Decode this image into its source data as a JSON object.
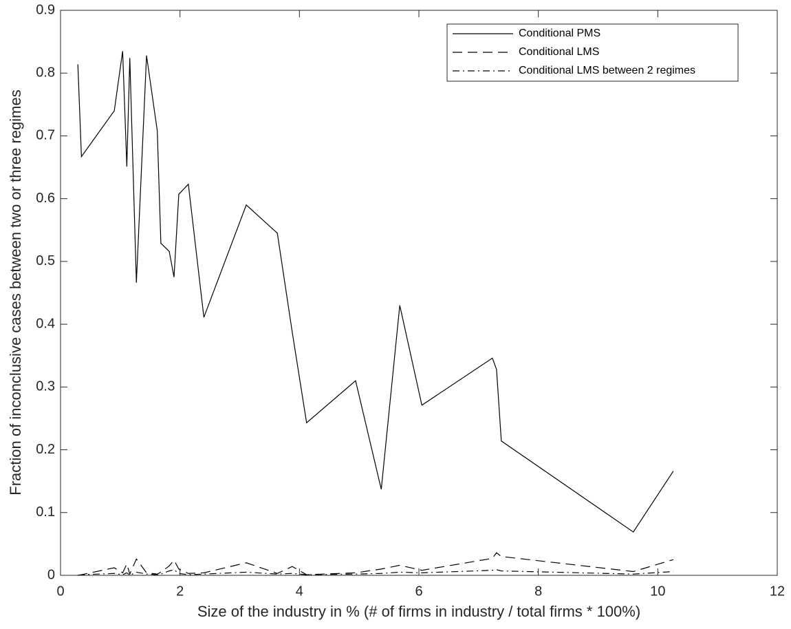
{
  "chart_data": {
    "type": "line",
    "xlabel": "Size of the industry in % (# of firms in industry / total firms * 100%)",
    "ylabel": "Fraction of inconclusive cases between two or three regimes",
    "x": [
      0.29,
      0.35,
      0.9,
      1.04,
      1.11,
      1.16,
      1.27,
      1.44,
      1.62,
      1.68,
      1.82,
      1.9,
      1.98,
      2.14,
      2.4,
      3.11,
      3.63,
      3.88,
      4.12,
      4.94,
      5.37,
      5.68,
      6.05,
      7.23,
      7.3,
      7.38,
      9.59,
      10.26
    ],
    "series": [
      {
        "name": "Conditional PMS",
        "color": "#000000",
        "dash": "solid",
        "values": [
          0.814,
          0.667,
          0.74,
          0.835,
          0.651,
          0.824,
          0.466,
          0.828,
          0.708,
          0.529,
          0.516,
          0.475,
          0.607,
          0.623,
          0.411,
          0.59,
          0.545,
          0.387,
          0.243,
          0.31,
          0.137,
          0.43,
          0.271,
          0.346,
          0.328,
          0.214,
          0.069,
          0.166
        ]
      },
      {
        "name": "Conditional LMS",
        "color": "#000000",
        "dash": "dashed",
        "values": [
          0.0,
          0.001,
          0.012,
          0.004,
          0.018,
          0.002,
          0.026,
          0.004,
          0.002,
          0.005,
          0.015,
          0.024,
          0.01,
          0.003,
          0.004,
          0.02,
          0.003,
          0.014,
          0.001,
          0.004,
          0.01,
          0.016,
          0.008,
          0.027,
          0.036,
          0.03,
          0.006,
          0.025
        ]
      },
      {
        "name": "Conditional LMS between 2 regimes",
        "color": "#000000",
        "dash": "dashdot",
        "values": [
          0.0,
          0.001,
          0.003,
          0.001,
          0.004,
          0.0,
          0.005,
          0.002,
          0.001,
          0.002,
          0.007,
          0.009,
          0.003,
          0.001,
          0.002,
          0.005,
          0.002,
          0.003,
          0.001,
          0.002,
          0.003,
          0.005,
          0.004,
          0.008,
          0.009,
          0.007,
          0.002,
          0.006
        ]
      }
    ],
    "xlim": [
      0,
      12
    ],
    "xticks": [
      0,
      2,
      4,
      6,
      8,
      10,
      12
    ],
    "ylim": [
      0,
      0.9
    ],
    "yticks": [
      0,
      0.1,
      0.2,
      0.3,
      0.4,
      0.5,
      0.6,
      0.7,
      0.8,
      0.9
    ],
    "grid": false,
    "legend": "upper right"
  }
}
